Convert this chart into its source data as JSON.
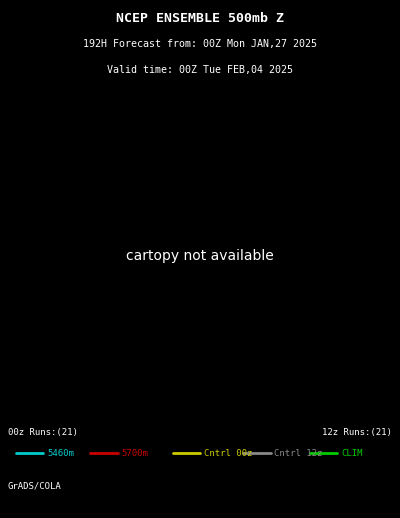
{
  "title_line1": "NCEP ENSEMBLE 500mb Z",
  "title_line2": "192H Forecast from: 00Z Mon JAN,27 2025",
  "title_line3": "Valid time: 00Z Tue FEB,04 2025",
  "bg_color": "#000000",
  "legend_left": "00z Runs:(21)",
  "legend_right": "12z Runs:(21)",
  "legend_items": [
    {
      "label": "5460m",
      "color": "#00cccc"
    },
    {
      "label": "5700m",
      "color": "#cc0000"
    },
    {
      "label": "Cntrl 00z",
      "color": "#cccc00"
    },
    {
      "label": "Cntrl 12z",
      "color": "#888888"
    },
    {
      "label": "CLIM",
      "color": "#00cc00"
    }
  ],
  "footer": "GrADS/COLA",
  "title_color": "#ffffff",
  "cyan_color": "#00cccc",
  "red_color": "#cc2200",
  "yellow_color": "#cccc00",
  "gray_color": "#888888",
  "green_color": "#00cc00",
  "orange_color": "#ff8800"
}
